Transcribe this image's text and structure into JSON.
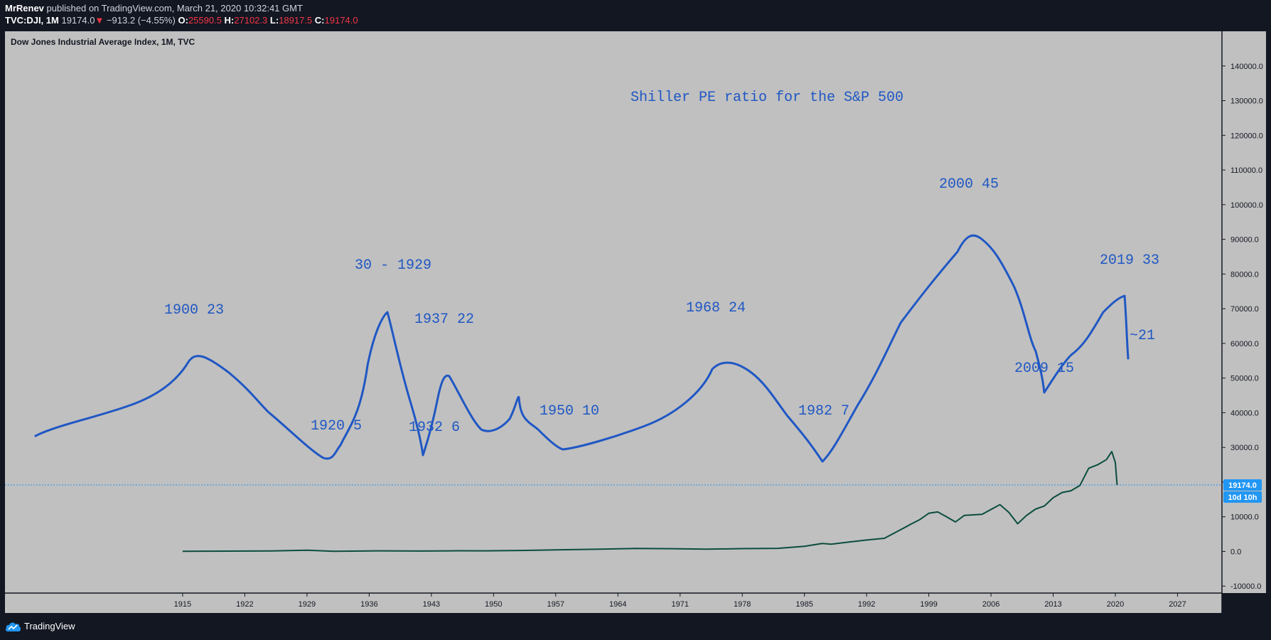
{
  "header": {
    "author": "MrRenev",
    "published": "published on TradingView.com, March 21, 2020 10:32:41 GMT",
    "symbol": "TVC:DJI, 1M",
    "last": "19174.0",
    "arrow": "▼",
    "change": "−913.2 (−4.55%)",
    "open_label": "O:",
    "open": "25590.5",
    "high_label": "H:",
    "high": "27102.3",
    "low_label": "L:",
    "low": "18917.5",
    "close_label": "C:",
    "close": "19174.0"
  },
  "footer": {
    "brand": "TradingView",
    "icon": "tradingview-cloud-icon"
  },
  "colors": {
    "background": "#131722",
    "pane": "#c0c0c0",
    "price_line": "#0b4d3e",
    "drawing": "#1f57c4",
    "price_badge": "#2196f3",
    "down": "#f23645"
  },
  "chart_data": {
    "type": "line",
    "title": "Dow Jones Industrial Average Index, 1M, TVC",
    "xlabel": "",
    "ylabel": "",
    "xlim": [
      1895,
      2032
    ],
    "ylim": [
      -12000,
      150000
    ],
    "x_ticks": [
      "1915",
      "1922",
      "1929",
      "1936",
      "1943",
      "1950",
      "1957",
      "1964",
      "1971",
      "1978",
      "1985",
      "1992",
      "1999",
      "2006",
      "2013",
      "2020",
      "2027"
    ],
    "y_ticks": [
      "140000.0",
      "130000.0",
      "120000.0",
      "110000.0",
      "100000.0",
      "90000.0",
      "80000.0",
      "70000.0",
      "60000.0",
      "50000.0",
      "40000.0",
      "30000.0",
      "20000.0",
      "10000.0",
      "0.0",
      "-10000.0"
    ],
    "last_price_label": "19174.0",
    "countdown_label": "10d 10h",
    "last_price": 19174.0,
    "grid": false,
    "series": [
      {
        "name": "",
        "x": [
          1915,
          1920,
          1925,
          1929,
          1932,
          1937,
          1942,
          1946,
          1949,
          1953,
          1957,
          1962,
          1966,
          1970,
          1974,
          1978,
          1982,
          1985,
          1987,
          1988,
          1990,
          1992,
          1994,
          1996,
          1997,
          1998,
          1999,
          2000,
          2001,
          2002,
          2003,
          2005,
          2007,
          2008,
          2009,
          2010,
          2011,
          2012,
          2013,
          2014,
          2015,
          2016,
          2017,
          2018,
          2019,
          2019.6,
          2020.0,
          2020.2
        ],
        "values": [
          50,
          100,
          150,
          350,
          60,
          180,
          110,
          200,
          180,
          280,
          450,
          650,
          850,
          800,
          650,
          820,
          900,
          1500,
          2300,
          2100,
          2700,
          3300,
          3800,
          6500,
          7900,
          9200,
          11000,
          11400,
          10000,
          8500,
          10400,
          10700,
          13500,
          11300,
          8000,
          10400,
          12200,
          13100,
          15500,
          17000,
          17500,
          19000,
          24000,
          25000,
          26500,
          28800,
          25600,
          19174
        ]
      }
    ],
    "annotations": [
      {
        "text": "Shiller PE ratio for the S&P 500"
      },
      {
        "text": "1900 23"
      },
      {
        "text": "30 - 1929"
      },
      {
        "text": "1937 22"
      },
      {
        "text": "1920 5"
      },
      {
        "text": "1932 6"
      },
      {
        "text": "1950 10"
      },
      {
        "text": "1968 24"
      },
      {
        "text": "1982 7"
      },
      {
        "text": "2000 45"
      },
      {
        "text": "2009 15"
      },
      {
        "text": "2019 33"
      },
      {
        "text": "~21"
      }
    ]
  }
}
